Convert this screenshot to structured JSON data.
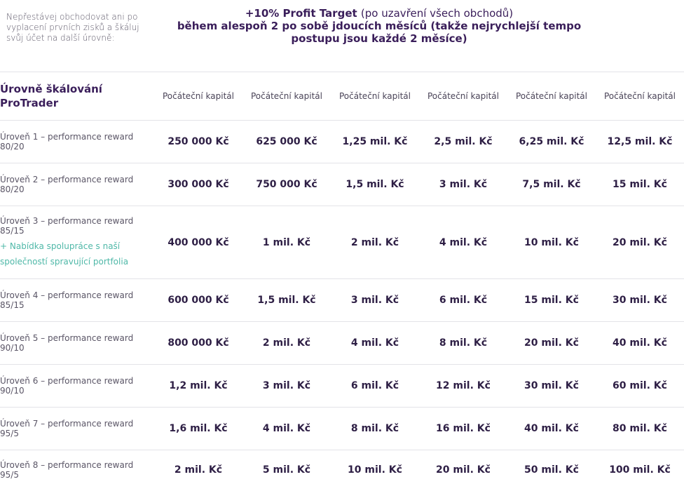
{
  "header": {
    "note": "Nepřestávej obchodovat ani po vyplacení prvních zisků a škáluj svůj účet na další úrovně:",
    "title_bold1": "+10% Profit Target",
    "title_light1": "(po uzavření všech obchodů)",
    "title_bold2": "během alespoň 2 po sobě jdoucích měsíců",
    "title_light2": "(takže nejrychlejší tempo postupu jsou každé 2 měsíce)"
  },
  "table": {
    "label_header": "Úrovně škálování ProTrader",
    "capital_headers": [
      "Počáteční kapitál",
      "Počáteční kapitál",
      "Počáteční kapitál",
      "Počáteční kapitál",
      "Počáteční kapitál",
      "Počáteční kapitál"
    ],
    "rows": [
      {
        "label": "Úroveň 1 – performance reward 80/20",
        "extra": "",
        "values": [
          "250 000 Kč",
          "625 000 Kč",
          "1,25 mil. Kč",
          "2,5 mil. Kč",
          "6,25 mil. Kč",
          "12,5 mil. Kč"
        ]
      },
      {
        "label": "Úroveň 2 – performance reward 80/20",
        "extra": "",
        "values": [
          "300 000 Kč",
          "750 000 Kč",
          "1,5 mil. Kč",
          "3 mil. Kč",
          "7,5 mil. Kč",
          "15 mil. Kč"
        ]
      },
      {
        "label": "Úroveň 3 – performance reward 85/15",
        "extra": "+ Nabídka spolupráce s naší společností spravující portfolia",
        "values": [
          "400 000 Kč",
          "1 mil. Kč",
          "2 mil. Kč",
          "4 mil. Kč",
          "10 mil. Kč",
          "20 mil. Kč"
        ]
      },
      {
        "label": "Úroveň 4 – performance reward 85/15",
        "extra": "",
        "values": [
          "600 000 Kč",
          "1,5 mil. Kč",
          "3 mil. Kč",
          "6 mil. Kč",
          "15 mil. Kč",
          "30 mil. Kč"
        ]
      },
      {
        "label": "Úroveň 5 – performance reward 90/10",
        "extra": "",
        "values": [
          "800 000 Kč",
          "2 mil. Kč",
          "4 mil. Kč",
          "8 mil. Kč",
          "20 mil. Kč",
          "40 mil. Kč"
        ]
      },
      {
        "label": "Úroveň 6 – performance reward 90/10",
        "extra": "",
        "values": [
          "1,2 mil. Kč",
          "3 mil. Kč",
          "6 mil. Kč",
          "12 mil. Kč",
          "30 mil. Kč",
          "60 mil. Kč"
        ]
      },
      {
        "label": "Úroveň 7 – performance reward 95/5",
        "extra": "",
        "values": [
          "1,6 mil. Kč",
          "4 mil. Kč",
          "8 mil. Kč",
          "16 mil. Kč",
          "40 mil. Kč",
          "80 mil. Kč"
        ]
      },
      {
        "label": "Úroveň 8 – performance reward 95/5",
        "extra": "",
        "values": [
          "2 mil. Kč",
          "5 mil. Kč",
          "10 mil. Kč",
          "20 mil. Kč",
          "50 mil. Kč",
          "100 mil. Kč"
        ]
      }
    ]
  },
  "colors": {
    "title": "#3a1e5a",
    "accent_teal": "#4fb8a8",
    "divider": "#e3e3e8"
  }
}
